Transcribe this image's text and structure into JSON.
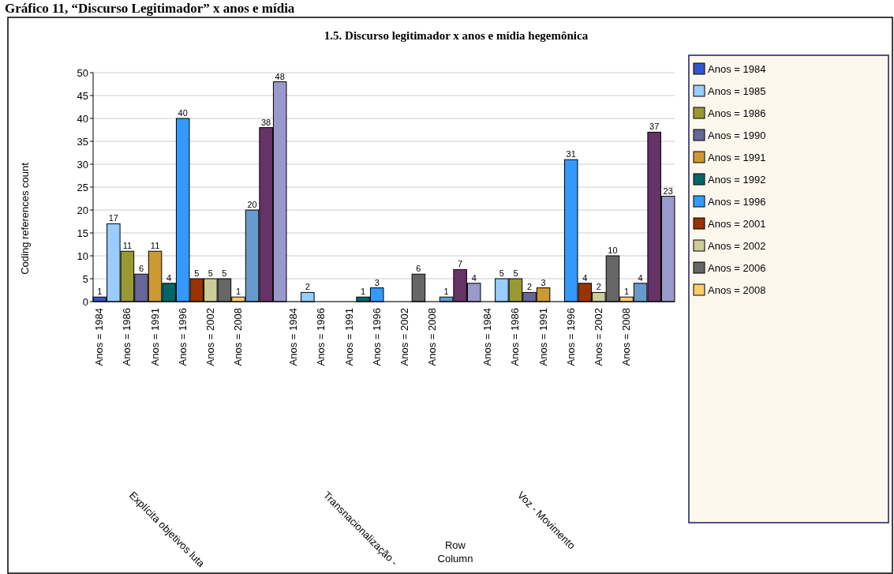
{
  "chart_data": {
    "type": "bar",
    "title": "1.5. Discurso legitimador x anos e mídia hegemônica",
    "subtitle": "Gráfico 11, “Discurso Legitimador” x anos e mídia",
    "ylabel": "Coding references count",
    "categories": [
      "Anos = 1984",
      null,
      "Anos = 1986",
      null,
      "Anos = 1991",
      null,
      "Anos = 1996",
      null,
      "Anos = 2002",
      null,
      "Anos = 2008",
      null,
      null,
      null,
      "Anos = 1984",
      null,
      "Anos = 1986",
      null,
      "Anos = 1991",
      null,
      "Anos = 1996",
      null,
      "Anos = 2002",
      null,
      "Anos = 2008",
      null,
      null,
      null,
      "Anos = 1984",
      null,
      "Anos = 1986",
      null,
      "Anos = 1991",
      null,
      "Anos = 1996",
      null,
      "Anos = 2002",
      null,
      "Anos = 2008",
      null,
      null,
      null
    ],
    "series": [
      {
        "name": "Anos = 1984",
        "color": "#3355cc",
        "values": [
          1,
          null,
          null,
          null,
          null,
          null,
          null,
          null,
          null,
          null,
          null,
          null,
          null,
          null,
          null,
          null,
          null,
          null,
          null,
          null,
          null,
          null,
          null,
          null,
          null,
          null,
          null,
          null,
          null,
          null,
          null,
          null,
          null,
          null,
          null,
          null,
          null,
          null,
          null,
          null,
          null,
          null
        ]
      },
      {
        "name": "Anos = 1985",
        "color": "#99ccff",
        "values": [
          null,
          17,
          null,
          null,
          null,
          null,
          null,
          null,
          null,
          null,
          null,
          null,
          null,
          null,
          null,
          2,
          null,
          null,
          null,
          null,
          null,
          null,
          null,
          null,
          null,
          null,
          null,
          null,
          null,
          5,
          null,
          null,
          null,
          null,
          null,
          null,
          null,
          null,
          null,
          null,
          null,
          null
        ]
      },
      {
        "name": "Anos = 1986",
        "color": "#999933",
        "values": [
          null,
          null,
          11,
          null,
          null,
          null,
          null,
          null,
          null,
          null,
          null,
          null,
          null,
          null,
          null,
          null,
          null,
          null,
          null,
          null,
          null,
          null,
          null,
          null,
          null,
          null,
          null,
          null,
          null,
          null,
          5,
          null,
          null,
          null,
          null,
          null,
          null,
          null,
          null,
          null,
          null,
          null
        ]
      },
      {
        "name": "Anos = 1990",
        "color": "#666699",
        "values": [
          null,
          null,
          null,
          6,
          null,
          null,
          null,
          null,
          null,
          null,
          null,
          null,
          null,
          null,
          null,
          null,
          null,
          null,
          null,
          null,
          null,
          null,
          null,
          null,
          null,
          null,
          null,
          null,
          null,
          null,
          null,
          2,
          null,
          null,
          null,
          null,
          null,
          null,
          null,
          null,
          null,
          null
        ]
      },
      {
        "name": "Anos = 1991",
        "color": "#cc9933",
        "values": [
          null,
          null,
          null,
          null,
          11,
          null,
          null,
          null,
          null,
          null,
          null,
          null,
          null,
          null,
          null,
          null,
          null,
          null,
          null,
          null,
          null,
          null,
          null,
          null,
          null,
          null,
          null,
          null,
          null,
          null,
          null,
          null,
          3,
          null,
          null,
          null,
          null,
          null,
          null,
          null,
          null,
          null
        ]
      },
      {
        "name": "Anos = 1992",
        "color": "#006666",
        "values": [
          null,
          null,
          null,
          null,
          null,
          4,
          null,
          null,
          null,
          null,
          null,
          null,
          null,
          null,
          null,
          null,
          null,
          null,
          null,
          1,
          null,
          null,
          null,
          null,
          null,
          null,
          null,
          null,
          null,
          null,
          null,
          null,
          null,
          null,
          null,
          null,
          null,
          null,
          null,
          null,
          null,
          null
        ]
      },
      {
        "name": "Anos = 1996",
        "color": "#3399ff",
        "values": [
          null,
          null,
          null,
          null,
          null,
          null,
          40,
          null,
          null,
          null,
          null,
          null,
          null,
          null,
          null,
          null,
          null,
          null,
          null,
          null,
          3,
          null,
          null,
          null,
          null,
          null,
          null,
          null,
          null,
          null,
          null,
          null,
          null,
          null,
          31,
          null,
          null,
          null,
          null,
          null,
          null,
          null
        ]
      },
      {
        "name": "Anos = 2001",
        "color": "#993300",
        "values": [
          null,
          null,
          null,
          null,
          null,
          null,
          null,
          5,
          null,
          null,
          null,
          null,
          null,
          null,
          null,
          null,
          null,
          null,
          null,
          null,
          null,
          null,
          null,
          null,
          null,
          null,
          null,
          null,
          null,
          null,
          null,
          null,
          null,
          null,
          null,
          4,
          null,
          null,
          null,
          null,
          null,
          null
        ]
      },
      {
        "name": "Anos = 2002",
        "color": "#cccc99",
        "values": [
          null,
          null,
          null,
          null,
          null,
          null,
          null,
          null,
          5,
          null,
          null,
          null,
          null,
          null,
          null,
          null,
          null,
          null,
          null,
          null,
          null,
          null,
          null,
          null,
          null,
          null,
          null,
          null,
          null,
          null,
          null,
          null,
          null,
          null,
          null,
          null,
          2,
          null,
          null,
          null,
          null,
          null
        ]
      },
      {
        "name": "Anos = 2006",
        "color": "#666666",
        "values": [
          null,
          null,
          null,
          null,
          null,
          null,
          null,
          null,
          null,
          5,
          null,
          null,
          null,
          null,
          null,
          null,
          null,
          null,
          null,
          null,
          null,
          null,
          null,
          6,
          null,
          null,
          null,
          null,
          null,
          null,
          null,
          null,
          null,
          null,
          null,
          null,
          null,
          10,
          null,
          null,
          null,
          null
        ]
      },
      {
        "name": "Anos = 2008",
        "color": "#ffcc66",
        "values": [
          null,
          null,
          null,
          null,
          null,
          null,
          null,
          null,
          null,
          null,
          1,
          null,
          null,
          null,
          null,
          null,
          null,
          null,
          null,
          null,
          null,
          null,
          null,
          null,
          null,
          null,
          null,
          null,
          null,
          null,
          null,
          null,
          null,
          null,
          null,
          null,
          null,
          null,
          1,
          null,
          null,
          null
        ]
      },
      {
        "color": "#6699cc",
        "values": [
          null,
          null,
          null,
          null,
          null,
          null,
          null,
          null,
          null,
          null,
          null,
          20,
          null,
          null,
          null,
          null,
          null,
          null,
          null,
          null,
          null,
          null,
          null,
          null,
          null,
          1,
          null,
          null,
          null,
          null,
          null,
          null,
          null,
          null,
          null,
          null,
          null,
          null,
          null,
          4,
          null,
          null
        ]
      },
      {
        "color": "#663366",
        "values": [
          null,
          null,
          null,
          null,
          null,
          null,
          null,
          null,
          null,
          null,
          null,
          null,
          38,
          null,
          null,
          null,
          null,
          null,
          null,
          null,
          null,
          null,
          null,
          null,
          null,
          null,
          7,
          null,
          null,
          null,
          null,
          null,
          null,
          null,
          null,
          null,
          null,
          null,
          null,
          null,
          37,
          null
        ]
      },
      {
        "color": "#9999cc",
        "values": [
          null,
          null,
          null,
          null,
          null,
          null,
          null,
          null,
          null,
          null,
          null,
          null,
          null,
          48,
          null,
          null,
          null,
          null,
          null,
          null,
          null,
          null,
          null,
          null,
          null,
          null,
          null,
          4,
          null,
          null,
          null,
          null,
          null,
          null,
          null,
          null,
          null,
          null,
          null,
          null,
          null,
          23
        ]
      }
    ],
    "ylim": [
      0,
      50
    ],
    "yticks": [
      0,
      5,
      10,
      15,
      20,
      25,
      30,
      35,
      40,
      45,
      50
    ],
    "grid": "y",
    "data_labels": true,
    "legend": "right",
    "annotations": [
      "Explícita objetivos luta",
      "Transnacionalização -",
      "Voz - Movimento",
      "Row",
      "Column"
    ]
  }
}
